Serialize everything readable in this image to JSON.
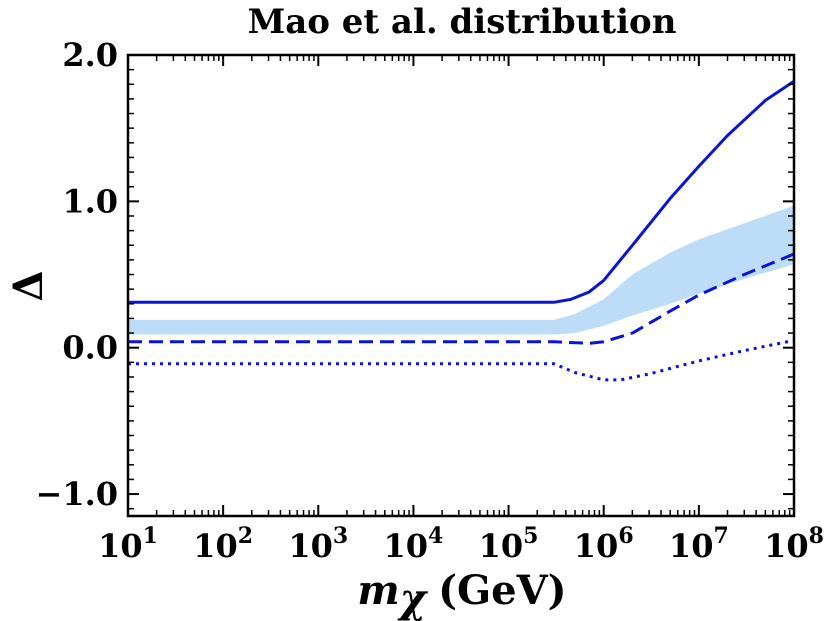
{
  "chart_data": {
    "type": "line",
    "title": "Mao et al. distribution",
    "xlabel": {
      "symbol": "m",
      "subscript": "χ",
      "unit": "(GeV)"
    },
    "ylabel": "Δ",
    "xscale": "log",
    "xlim": [
      10,
      100000000
    ],
    "ylim": [
      -1.15,
      2.0
    ],
    "x_ticks": [
      {
        "value": 10,
        "base": "10",
        "exp": "1"
      },
      {
        "value": 100,
        "base": "10",
        "exp": "2"
      },
      {
        "value": 1000,
        "base": "10",
        "exp": "3"
      },
      {
        "value": 10000,
        "base": "10",
        "exp": "4"
      },
      {
        "value": 100000,
        "base": "10",
        "exp": "5"
      },
      {
        "value": 1000000,
        "base": "10",
        "exp": "6"
      },
      {
        "value": 10000000,
        "base": "10",
        "exp": "7"
      },
      {
        "value": 100000000,
        "base": "10",
        "exp": "8"
      }
    ],
    "y_ticks": [
      {
        "value": 2.0,
        "label": "2.0"
      },
      {
        "value": 1.0,
        "label": "1.0"
      },
      {
        "value": 0.0,
        "label": "0.0"
      },
      {
        "value": -1.0,
        "label": "−1.0"
      }
    ],
    "grid": false,
    "colors": {
      "line": "#0a14d6",
      "band": "#bcdcf8"
    },
    "series": [
      {
        "style": "solid",
        "x": [
          10,
          300000,
          450000,
          700000,
          1000000,
          2000000,
          5000000,
          10000000,
          20000000,
          50000000,
          100000000
        ],
        "y": [
          0.31,
          0.31,
          0.33,
          0.38,
          0.46,
          0.7,
          1.02,
          1.24,
          1.45,
          1.69,
          1.82
        ]
      },
      {
        "style": "dashed",
        "x": [
          10,
          300000,
          700000,
          1000000,
          2000000,
          5000000,
          10000000,
          30000000,
          100000000
        ],
        "y": [
          0.04,
          0.04,
          0.03,
          0.04,
          0.1,
          0.25,
          0.36,
          0.5,
          0.64
        ]
      },
      {
        "style": "dotted",
        "x": [
          10,
          300000,
          500000,
          1000000,
          1500000,
          3000000,
          10000000,
          30000000,
          100000000
        ],
        "y": [
          -0.11,
          -0.11,
          -0.17,
          -0.22,
          -0.22,
          -0.18,
          -0.09,
          -0.02,
          0.05
        ]
      }
    ],
    "band": {
      "x": [
        10,
        300000,
        500000,
        1000000,
        2000000,
        5000000,
        10000000,
        30000000,
        100000000
      ],
      "upper": [
        0.19,
        0.19,
        0.23,
        0.33,
        0.5,
        0.65,
        0.74,
        0.85,
        0.97
      ],
      "lower": [
        0.09,
        0.09,
        0.1,
        0.15,
        0.22,
        0.3,
        0.37,
        0.47,
        0.57
      ]
    }
  }
}
